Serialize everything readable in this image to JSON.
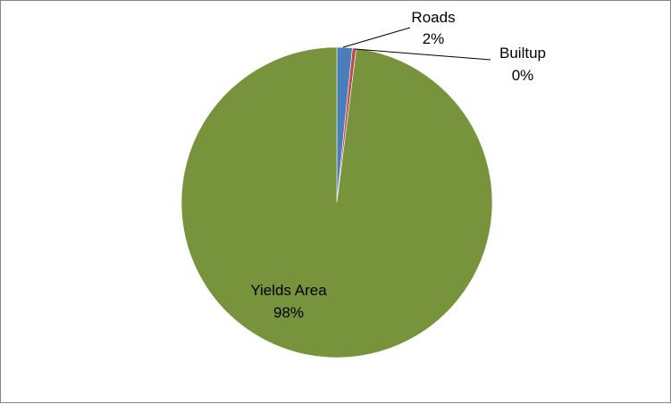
{
  "chart_data": {
    "type": "pie",
    "title": "",
    "slices": [
      {
        "label": "Roads",
        "percent_label": "2%",
        "value": 1.6,
        "color": "#4a7ebb"
      },
      {
        "label": "Builtup",
        "percent_label": "0%",
        "value": 0.4,
        "color": "#be4b48"
      },
      {
        "label": "Yields Area",
        "percent_label": "98%",
        "value": 98.0,
        "color": "#77933c"
      }
    ],
    "legend": "none",
    "start_angle": "12 o'clock",
    "direction": "clockwise"
  }
}
